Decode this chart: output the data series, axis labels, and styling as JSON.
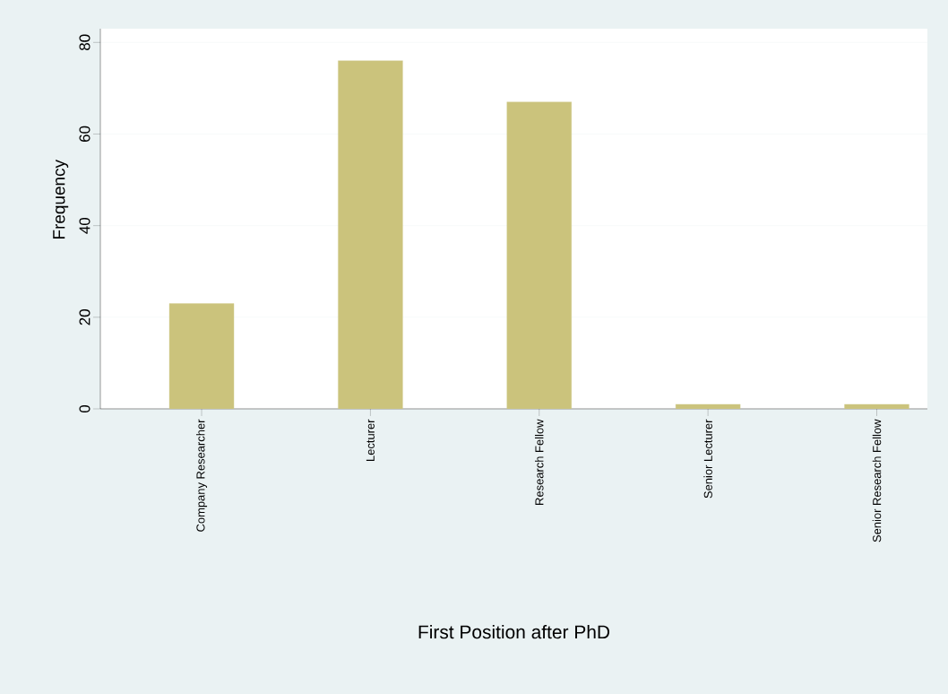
{
  "chart_data": {
    "type": "bar",
    "xlabel": "First Position after PhD",
    "ylabel": "Frequency",
    "categories": [
      "Company Researcher",
      "Lecturer",
      "Research Fellow",
      "Senior Lecturer",
      "Senior Research Fellow"
    ],
    "values": [
      23,
      76,
      67,
      1,
      1
    ],
    "color": "#cbc37c",
    "ylim": [
      0,
      83
    ],
    "yticks": [
      0,
      20,
      40,
      60,
      80
    ],
    "grid": "y"
  }
}
